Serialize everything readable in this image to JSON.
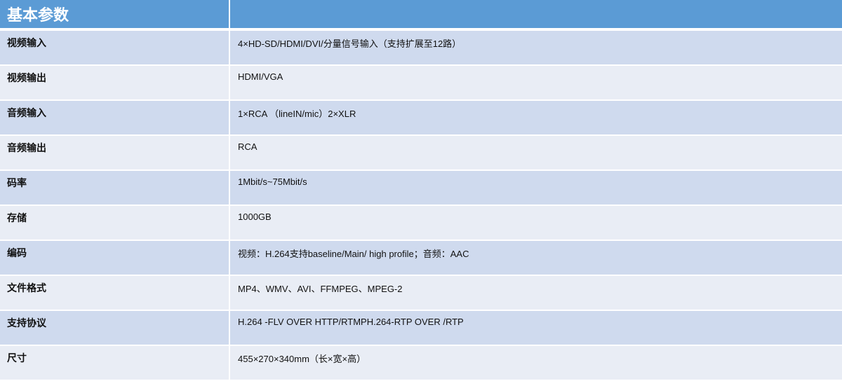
{
  "header": {
    "title": "基本参数",
    "col2": ""
  },
  "colors": {
    "header": "#5b9bd5",
    "row_odd": "#cfdaee",
    "row_even": "#e9edf5"
  },
  "rows": [
    {
      "key": "视频输入",
      "value": "4×HD-SD/HDMI/DVI/分量信号输入（支持扩展至12路）"
    },
    {
      "key": "视频输出",
      "value": "HDMI/VGA"
    },
    {
      "key": "音频输入",
      "value": "1×RCA （lineIN/mic）2×XLR"
    },
    {
      "key": "音频输出",
      "value": "RCA"
    },
    {
      "key": "码率",
      "value": "1Mbit/s~75Mbit/s"
    },
    {
      "key": "存储",
      "value": "1000GB"
    },
    {
      "key": "编码",
      "value": "视频：H.264支持baseline/Main/ high profile；音频：AAC"
    },
    {
      "key": "文件格式",
      "value": "MP4、WMV、AVI、FFMPEG、MPEG-2"
    },
    {
      "key": "支持协议",
      "value": "H.264 -FLV OVER HTTP/RTMPH.264-RTP OVER /RTP"
    },
    {
      "key": "尺寸",
      "value": "455×270×340mm（长×宽×高）"
    }
  ]
}
